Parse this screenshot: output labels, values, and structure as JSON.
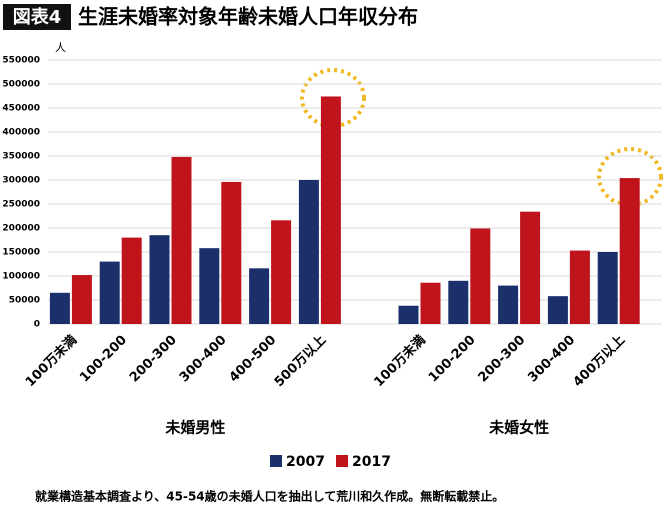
{
  "chart_data": {
    "type": "bar",
    "figure_label": "図表4",
    "title": "生涯未婚率対象年齢未婚人口年収分布",
    "y_unit": "人",
    "categories": [
      "100万未満",
      "100-200",
      "200-300",
      "300-400",
      "400-500",
      "500万以上",
      null,
      "100万未満",
      "100-200",
      "200-300",
      "300-400",
      "400万以上"
    ],
    "group_labels": [
      "未婚男性",
      "未婚女性"
    ],
    "series": [
      {
        "name": "2007",
        "color": "#1b2f6b",
        "values": [
          65000,
          130000,
          185000,
          158000,
          116000,
          300000,
          null,
          38000,
          90000,
          80000,
          58000,
          150000
        ]
      },
      {
        "name": "2017",
        "color": "#c0141c",
        "values": [
          102000,
          180000,
          348000,
          296000,
          216000,
          474000,
          null,
          86000,
          199000,
          234000,
          153000,
          304000
        ]
      }
    ],
    "ylim": [
      0,
      550000
    ],
    "yticks": [
      0,
      50000,
      100000,
      150000,
      200000,
      250000,
      300000,
      350000,
      400000,
      450000,
      500000,
      550000
    ],
    "grid": true,
    "note": "就業構造基本調査より、45-54歳の未婚人口を抽出して荒川和久作成。無断転載禁止。"
  }
}
